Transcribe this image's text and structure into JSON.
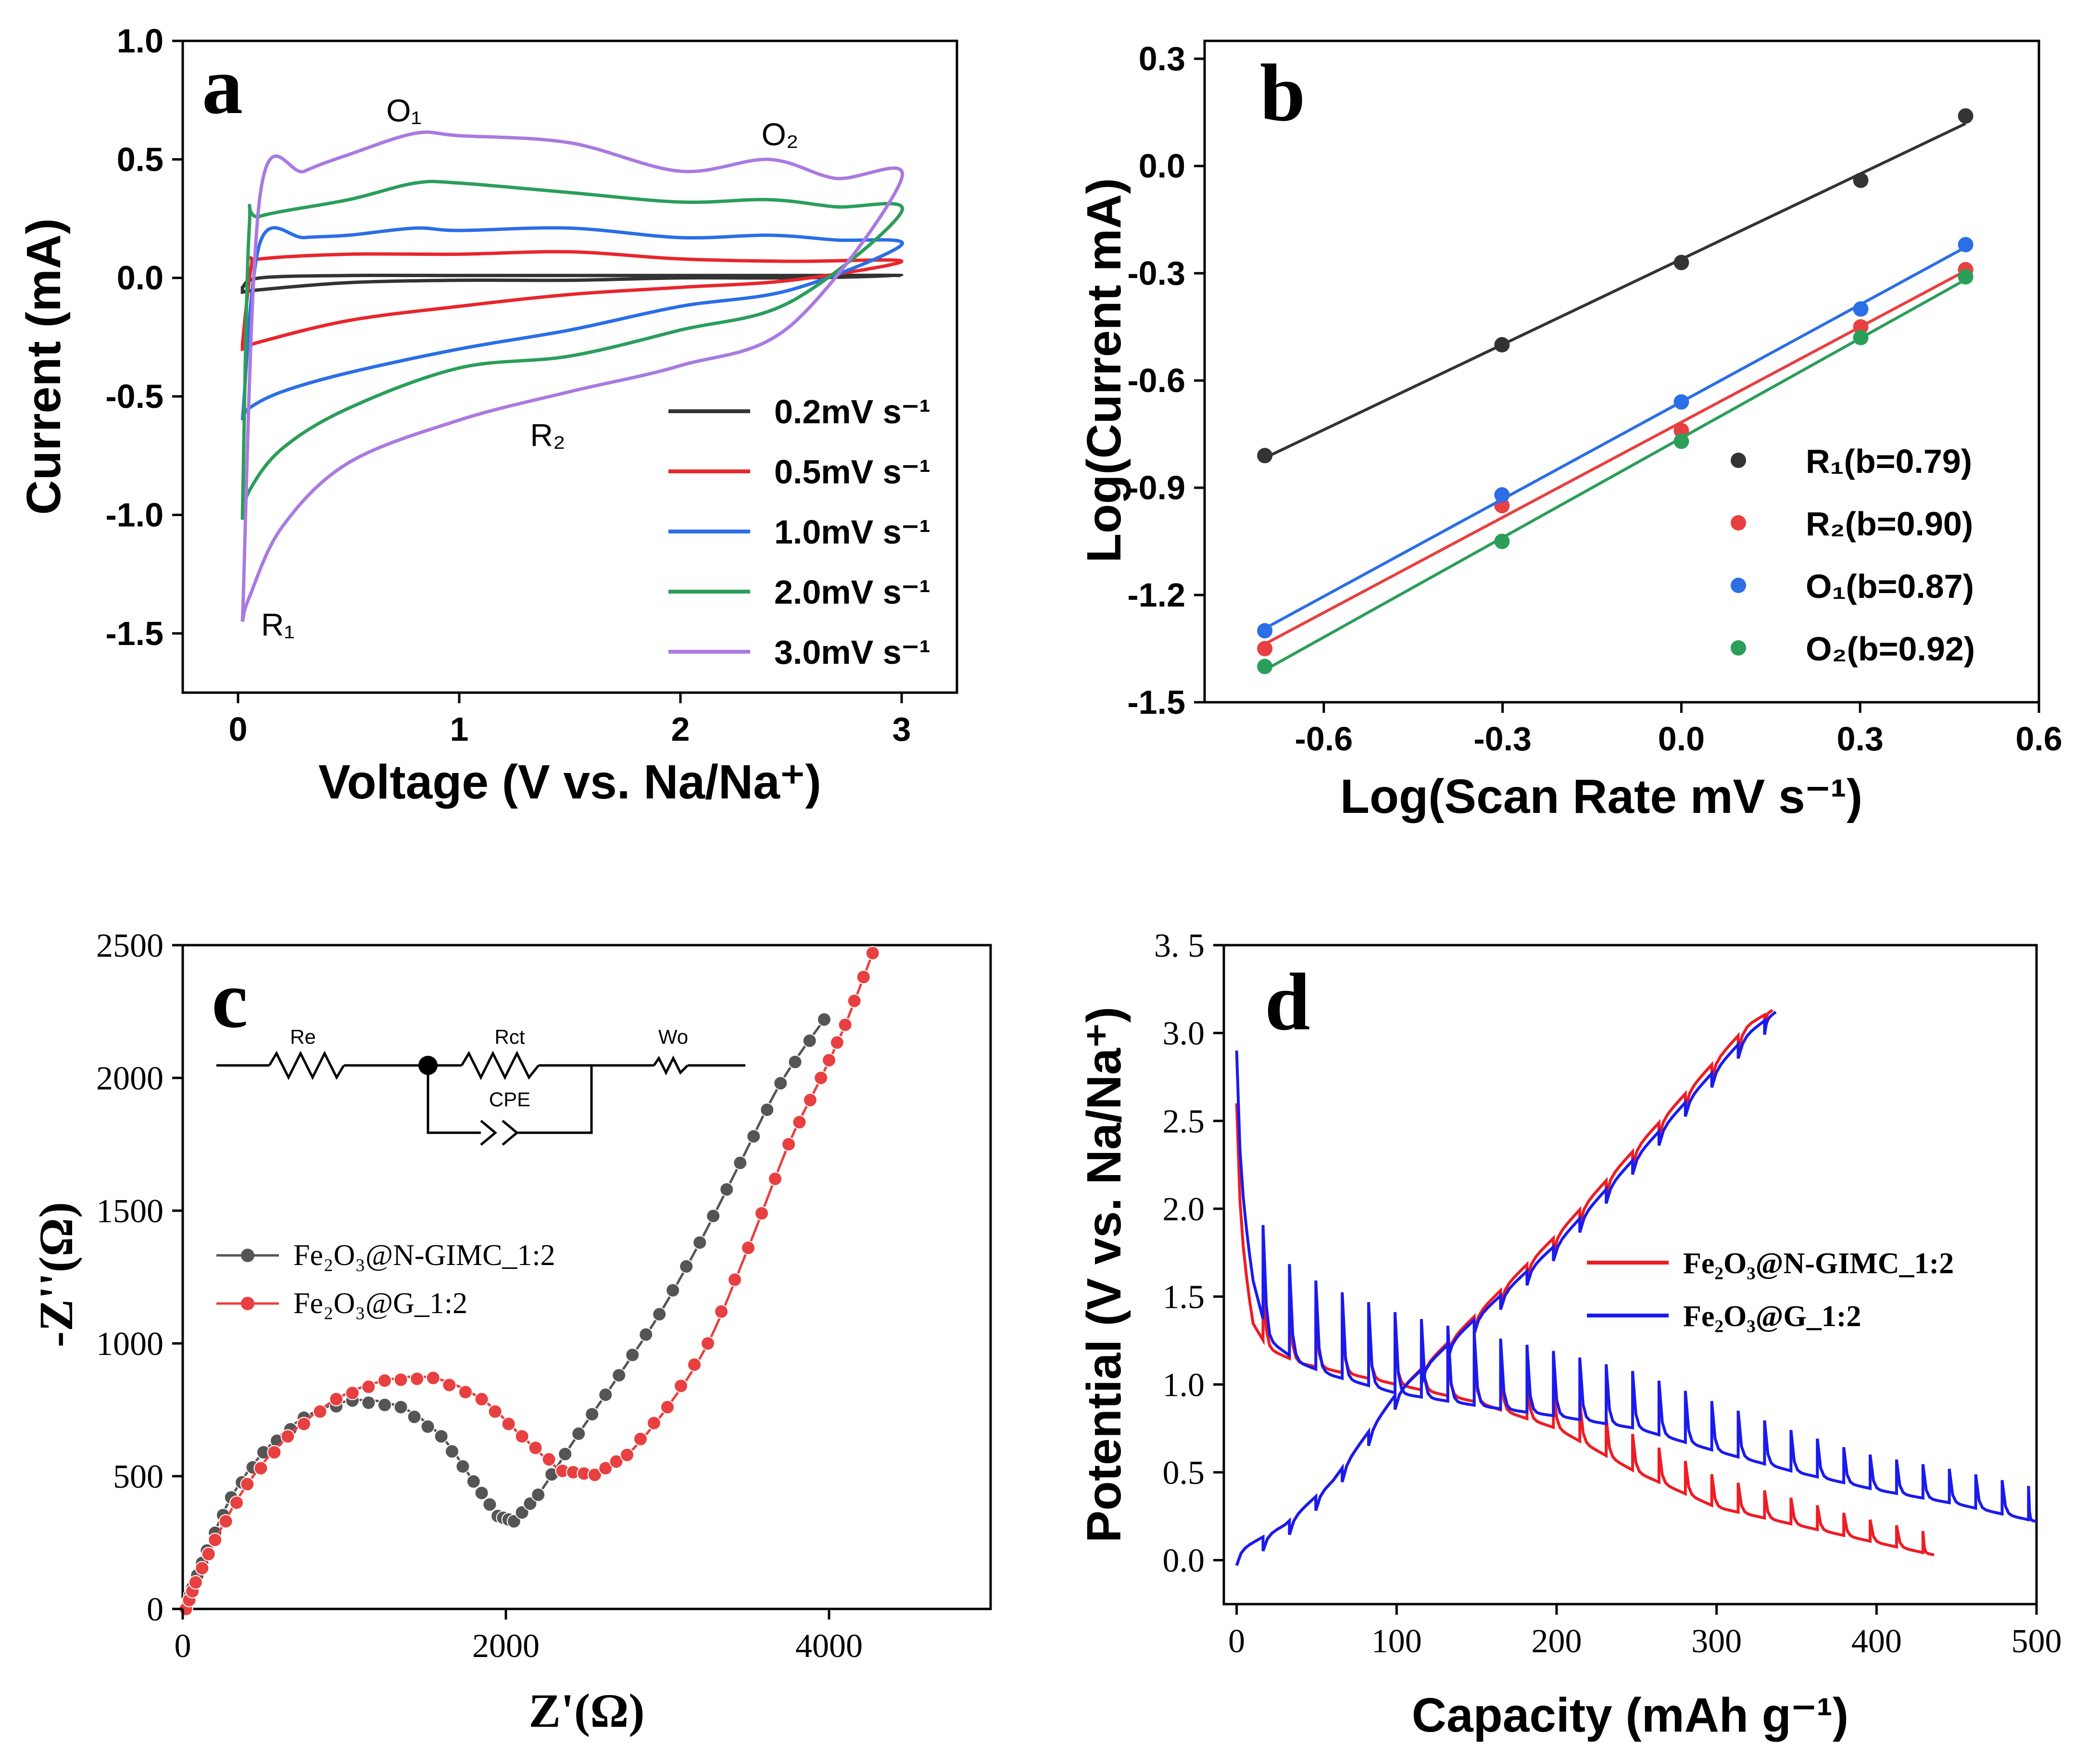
{
  "chart_data": [
    {
      "panel": "a",
      "type": "line",
      "xlabel": "Voltage (V vs. Na/Na⁺)",
      "ylabel": "Current (mA)",
      "xlim": [
        -0.25,
        3.25
      ],
      "ylim": [
        -1.75,
        1.0
      ],
      "xticks": [
        "0",
        "1",
        "2",
        "3"
      ],
      "yticks": [
        "1.0",
        "0.5",
        "0.0",
        "-0.5",
        "-1.0",
        "-1.5"
      ],
      "annotations": [
        "O₁",
        "O₂",
        "R₁",
        "R₂"
      ],
      "legend_position": "bottom-right",
      "series": [
        {
          "name": "0.2mV s⁻¹",
          "color": "#333333",
          "anodic": [
            [
              0.02,
              -0.04
            ],
            [
              0.1,
              0.0
            ],
            [
              0.5,
              0.01
            ],
            [
              1.0,
              0.01
            ],
            [
              1.5,
              0.01
            ],
            [
              2.0,
              0.01
            ],
            [
              2.5,
              0.01
            ],
            [
              3.0,
              0.01
            ]
          ],
          "cathodic": [
            [
              3.0,
              0.01
            ],
            [
              2.5,
              0.0
            ],
            [
              2.0,
              0.0
            ],
            [
              1.5,
              -0.01
            ],
            [
              1.0,
              -0.01
            ],
            [
              0.5,
              -0.02
            ],
            [
              0.1,
              -0.05
            ],
            [
              0.02,
              -0.06
            ]
          ]
        },
        {
          "name": "0.5mV s⁻¹",
          "color": "#e8262c",
          "anodic": [
            [
              0.02,
              -0.28
            ],
            [
              0.06,
              0.05
            ],
            [
              0.1,
              0.08
            ],
            [
              0.5,
              0.1
            ],
            [
              1.0,
              0.1
            ],
            [
              1.5,
              0.11
            ],
            [
              2.0,
              0.08
            ],
            [
              2.5,
              0.07
            ],
            [
              3.0,
              0.07
            ]
          ],
          "cathodic": [
            [
              3.0,
              0.02
            ],
            [
              2.5,
              -0.01
            ],
            [
              2.0,
              -0.04
            ],
            [
              1.5,
              -0.07
            ],
            [
              1.0,
              -0.12
            ],
            [
              0.5,
              -0.18
            ],
            [
              0.1,
              -0.27
            ],
            [
              0.02,
              -0.3
            ]
          ]
        },
        {
          "name": "1.0mV s⁻¹",
          "color": "#2b6ee6",
          "anodic": [
            [
              0.02,
              -0.6
            ],
            [
              0.1,
              0.15
            ],
            [
              0.3,
              0.17
            ],
            [
              0.5,
              0.18
            ],
            [
              0.8,
              0.21
            ],
            [
              1.0,
              0.2
            ],
            [
              1.5,
              0.21
            ],
            [
              2.0,
              0.17
            ],
            [
              2.4,
              0.18
            ],
            [
              2.7,
              0.16
            ],
            [
              3.0,
              0.14
            ]
          ],
          "cathodic": [
            [
              3.0,
              0.0
            ],
            [
              2.5,
              -0.05
            ],
            [
              2.0,
              -0.12
            ],
            [
              1.5,
              -0.22
            ],
            [
              1.0,
              -0.3
            ],
            [
              0.5,
              -0.4
            ],
            [
              0.2,
              -0.48
            ],
            [
              0.05,
              -0.55
            ],
            [
              0.02,
              -0.6
            ]
          ]
        },
        {
          "name": "2.0mV s⁻¹",
          "color": "#2b9e5a",
          "anodic": [
            [
              0.02,
              -1.0
            ],
            [
              0.05,
              0.2
            ],
            [
              0.1,
              0.26
            ],
            [
              0.5,
              0.33
            ],
            [
              0.8,
              0.4
            ],
            [
              1.0,
              0.4
            ],
            [
              1.5,
              0.36
            ],
            [
              2.0,
              0.32
            ],
            [
              2.4,
              0.33
            ],
            [
              2.7,
              0.3
            ],
            [
              3.0,
              0.28
            ]
          ],
          "cathodic": [
            [
              3.0,
              -0.02
            ],
            [
              2.5,
              -0.1
            ],
            [
              2.0,
              -0.22
            ],
            [
              1.5,
              -0.33
            ],
            [
              1.0,
              -0.38
            ],
            [
              0.5,
              -0.55
            ],
            [
              0.2,
              -0.72
            ],
            [
              0.05,
              -0.9
            ],
            [
              0.02,
              -1.02
            ]
          ]
        },
        {
          "name": "3.0mV s⁻¹",
          "color": "#a97ae0",
          "anodic": [
            [
              0.02,
              -1.45
            ],
            [
              0.1,
              0.35
            ],
            [
              0.3,
              0.45
            ],
            [
              0.5,
              0.52
            ],
            [
              0.8,
              0.61
            ],
            [
              1.0,
              0.6
            ],
            [
              1.5,
              0.57
            ],
            [
              2.0,
              0.45
            ],
            [
              2.4,
              0.5
            ],
            [
              2.7,
              0.42
            ],
            [
              3.0,
              0.42
            ]
          ],
          "cathodic": [
            [
              3.0,
              -0.05
            ],
            [
              2.5,
              -0.2
            ],
            [
              2.0,
              -0.37
            ],
            [
              1.5,
              -0.48
            ],
            [
              1.0,
              -0.6
            ],
            [
              0.5,
              -0.78
            ],
            [
              0.2,
              -1.05
            ],
            [
              0.05,
              -1.35
            ],
            [
              0.02,
              -1.45
            ]
          ]
        }
      ]
    },
    {
      "panel": "b",
      "type": "scatter",
      "xlabel": "Log(Scan Rate mV s⁻¹)",
      "ylabel": "Log(Current mA)",
      "xlim": [
        -0.8,
        0.6
      ],
      "ylim": [
        -1.5,
        0.35
      ],
      "xticks": [
        "-0.6",
        "-0.3",
        "0.0",
        "0.3",
        "0.6"
      ],
      "yticks": [
        "0.3",
        "0.0",
        "-0.3",
        "-0.6",
        "-0.9",
        "-1.2",
        "-1.5"
      ],
      "x": [
        -0.699,
        -0.301,
        0.0,
        0.301,
        0.477
      ],
      "legend_position": "bottom-right",
      "series": [
        {
          "name": "R₁(b=0.79)",
          "color": "#333333",
          "values": [
            -0.81,
            -0.5,
            -0.27,
            -0.04,
            0.14
          ]
        },
        {
          "name": "R₂(b=0.90)",
          "color": "#e84040",
          "values": [
            -1.35,
            -0.95,
            -0.74,
            -0.45,
            -0.29
          ]
        },
        {
          "name": "O₁(b=0.87)",
          "color": "#2b6ee6",
          "values": [
            -1.3,
            -0.92,
            -0.66,
            -0.4,
            -0.22
          ]
        },
        {
          "name": "O₂(b=0.92)",
          "color": "#2b9e5a",
          "values": [
            -1.4,
            -1.05,
            -0.77,
            -0.48,
            -0.31
          ]
        }
      ]
    },
    {
      "panel": "c",
      "type": "line",
      "xlabel": "Z'(Ω)",
      "ylabel": "-Z''(Ω)",
      "xlim": [
        0,
        5000
      ],
      "ylim": [
        0,
        2500
      ],
      "xticks": [
        "0",
        "2000",
        "4000"
      ],
      "yticks": [
        "2500",
        "2000",
        "1500",
        "1000",
        "500",
        "0"
      ],
      "circuit_labels": [
        "Re",
        "Rct",
        "Wo",
        "CPE"
      ],
      "legend_position": "center-left",
      "series": [
        {
          "name": "Fe₂O₃@N-GIMC_1:2",
          "color": "#555555",
          "points": [
            [
              20,
              0
            ],
            [
              60,
              80
            ],
            [
              150,
              220
            ],
            [
              300,
              420
            ],
            [
              500,
              590
            ],
            [
              750,
              720
            ],
            [
              1050,
              785
            ],
            [
              1350,
              760
            ],
            [
              1600,
              650
            ],
            [
              1800,
              480
            ],
            [
              1950,
              350
            ],
            [
              2050,
              330
            ],
            [
              2200,
              430
            ],
            [
              2450,
              660
            ],
            [
              2700,
              880
            ],
            [
              2950,
              1110
            ],
            [
              3200,
              1380
            ],
            [
              3450,
              1680
            ],
            [
              3700,
              1980
            ],
            [
              3970,
              2220
            ]
          ]
        },
        {
          "name": "Fe₂O₃@G_1:2",
          "color": "#e84040",
          "points": [
            [
              20,
              0
            ],
            [
              80,
              100
            ],
            [
              200,
              260
            ],
            [
              400,
              470
            ],
            [
              650,
              650
            ],
            [
              950,
              790
            ],
            [
              1250,
              860
            ],
            [
              1550,
              870
            ],
            [
              1850,
              790
            ],
            [
              2100,
              650
            ],
            [
              2350,
              520
            ],
            [
              2550,
              505
            ],
            [
              2750,
              580
            ],
            [
              3000,
              760
            ],
            [
              3250,
              1000
            ],
            [
              3500,
              1360
            ],
            [
              3750,
              1750
            ],
            [
              3950,
              2000
            ],
            [
              4100,
              2200
            ],
            [
              4270,
              2470
            ]
          ]
        }
      ]
    },
    {
      "panel": "d",
      "type": "line",
      "xlabel": "Capacity (mAh g⁻¹)",
      "ylabel": "Potential (V vs. Na/Na⁺)",
      "xlim": [
        -8,
        500
      ],
      "ylim": [
        -0.25,
        3.5
      ],
      "xticks": [
        "0",
        "100",
        "200",
        "300",
        "400",
        "500"
      ],
      "yticks": [
        "3. 5",
        "3.0",
        "2.5",
        "2.0",
        "1.5",
        "1.0",
        "0.5",
        "0.0"
      ],
      "legend_position": "center-right",
      "series": [
        {
          "name": "Fe₂O₃@N-GIMC_1:2",
          "color": "#ee1c24",
          "discharge_base": [
            [
              0,
              2.0
            ],
            [
              10,
              1.35
            ],
            [
              20,
              1.2
            ],
            [
              40,
              1.12
            ],
            [
              60,
              1.08
            ],
            [
              100,
              1.0
            ],
            [
              150,
              0.9
            ],
            [
              200,
              0.75
            ],
            [
              250,
              0.5
            ],
            [
              300,
              0.3
            ],
            [
              350,
              0.2
            ],
            [
              400,
              0.1
            ],
            [
              436,
              0.03
            ]
          ],
          "charge": [
            [
              0,
              0.05
            ],
            [
              30,
              0.2
            ],
            [
              60,
              0.45
            ],
            [
              100,
              0.95
            ],
            [
              150,
              1.4
            ],
            [
              200,
              1.85
            ],
            [
              250,
              2.35
            ],
            [
              300,
              2.85
            ],
            [
              320,
              3.05
            ],
            [
              335,
              3.13
            ]
          ],
          "pulse_period": 16.5,
          "pulse_height": 0.35
        },
        {
          "name": "Fe₂O₃@G_1:2",
          "color": "#1a1aee",
          "discharge_base": [
            [
              0,
              2.3
            ],
            [
              10,
              1.6
            ],
            [
              20,
              1.25
            ],
            [
              40,
              1.12
            ],
            [
              60,
              1.05
            ],
            [
              100,
              0.95
            ],
            [
              150,
              0.88
            ],
            [
              200,
              0.82
            ],
            [
              250,
              0.75
            ],
            [
              300,
              0.62
            ],
            [
              350,
              0.5
            ],
            [
              400,
              0.4
            ],
            [
              450,
              0.32
            ],
            [
              500,
              0.22
            ]
          ],
          "charge": [
            [
              0,
              0.05
            ],
            [
              30,
              0.2
            ],
            [
              60,
              0.45
            ],
            [
              100,
              0.95
            ],
            [
              150,
              1.38
            ],
            [
              200,
              1.8
            ],
            [
              250,
              2.3
            ],
            [
              300,
              2.8
            ],
            [
              320,
              3.0
            ],
            [
              337,
              3.12
            ]
          ],
          "pulse_period": 16.5,
          "pulse_height": 0.55
        }
      ]
    }
  ]
}
